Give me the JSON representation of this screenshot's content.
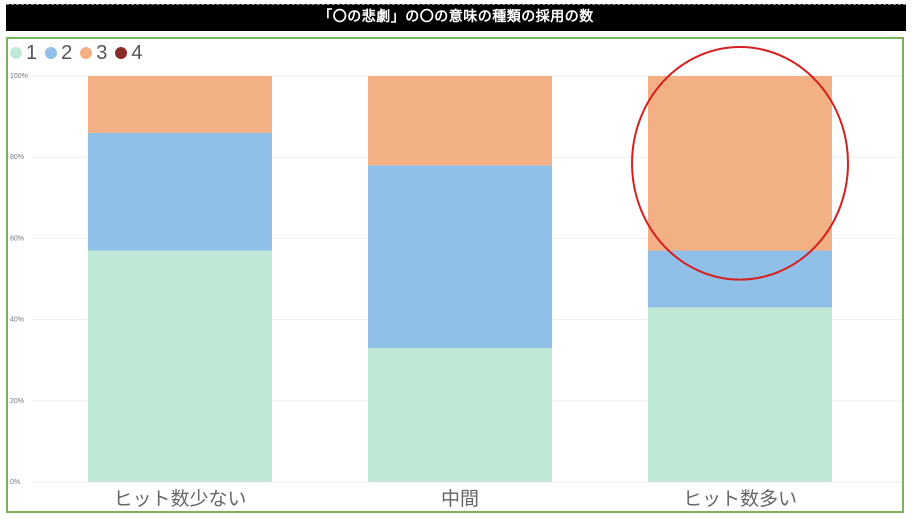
{
  "chart_data": {
    "type": "bar",
    "stacked": true,
    "normalized": true,
    "title": "「〇の悲劇」の〇の意味の種類の採用の数",
    "categories": [
      "ヒット数少ない",
      "中間",
      "ヒット数多い"
    ],
    "series": [
      {
        "name": "1",
        "color": "#c0e8d6",
        "values": [
          57,
          33,
          43
        ]
      },
      {
        "name": "2",
        "color": "#90bfe8",
        "values": [
          29,
          45,
          14
        ]
      },
      {
        "name": "3",
        "color": "#f2b084",
        "values": [
          14,
          22,
          43
        ]
      },
      {
        "name": "4",
        "color": "#8b2a2a",
        "values": [
          0,
          0,
          0
        ]
      }
    ],
    "yticks": [
      "0%",
      "20%",
      "40%",
      "60%",
      "80%",
      "100%"
    ],
    "ylim": [
      0,
      100
    ],
    "grid": true,
    "legend": "top-left",
    "annotation": {
      "shape": "circle",
      "color": "#d42020",
      "category": "ヒット数多い",
      "series": "3"
    }
  },
  "frame_color": "#79b45a"
}
